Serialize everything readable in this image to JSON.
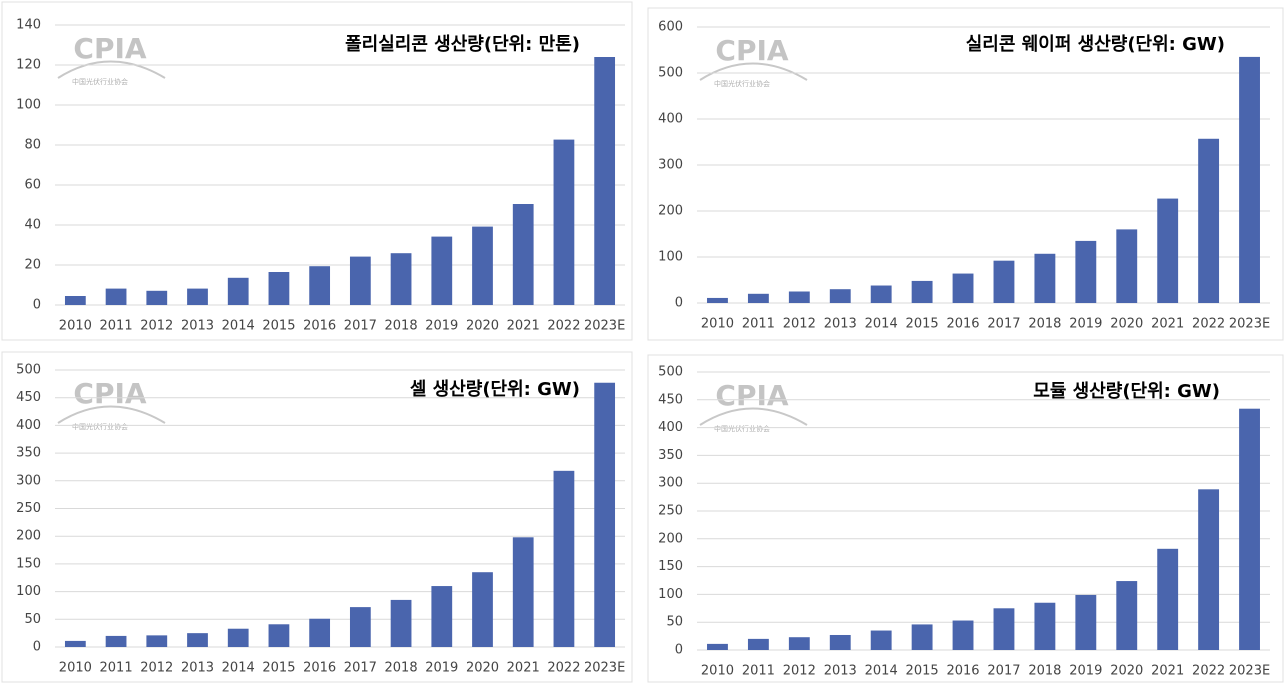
{
  "chart_data": [
    {
      "type": "bar",
      "title": "폴리실리콘 생산량(단위: 만톤)",
      "watermark": {
        "logo": "CPIA",
        "name": "中国光伏行业协会"
      },
      "categories": [
        "2010",
        "2011",
        "2012",
        "2013",
        "2014",
        "2015",
        "2016",
        "2017",
        "2018",
        "2019",
        "2020",
        "2021",
        "2022",
        "2023E"
      ],
      "values": [
        4.5,
        8.2,
        7.1,
        8.2,
        13.6,
        16.5,
        19.4,
        24.2,
        25.9,
        34.2,
        39.2,
        50.5,
        82.7,
        124
      ],
      "color": "#4a65ad",
      "ylim": [
        0,
        140
      ],
      "yticks": [
        0,
        20,
        40,
        60,
        80,
        100,
        120,
        140
      ],
      "grid": true
    },
    {
      "type": "bar",
      "title": "실리콘 웨이퍼 생산량(단위: GW)",
      "watermark": {
        "logo": "CPIA",
        "name": "中国光伏行业协会"
      },
      "categories": [
        "2010",
        "2011",
        "2012",
        "2013",
        "2014",
        "2015",
        "2016",
        "2017",
        "2018",
        "2019",
        "2020",
        "2021",
        "2022",
        "2023E"
      ],
      "values": [
        11,
        20,
        25,
        30,
        38,
        48,
        64,
        92,
        107,
        135,
        160,
        227,
        357,
        535
      ],
      "color": "#4a65ad",
      "ylim": [
        0,
        600
      ],
      "yticks": [
        0,
        100,
        200,
        300,
        400,
        500,
        600
      ],
      "grid": true
    },
    {
      "type": "bar",
      "title": "셀 생산량(단위: GW)",
      "watermark": {
        "logo": "CPIA",
        "name": "中国光伏行业协会"
      },
      "categories": [
        "2010",
        "2011",
        "2012",
        "2013",
        "2014",
        "2015",
        "2016",
        "2017",
        "2018",
        "2019",
        "2020",
        "2021",
        "2022",
        "2023E"
      ],
      "values": [
        11,
        20,
        21,
        25,
        33,
        41,
        51,
        72,
        85,
        110,
        135,
        198,
        318,
        477
      ],
      "color": "#4a65ad",
      "ylim": [
        0,
        500
      ],
      "yticks": [
        0,
        50,
        100,
        150,
        200,
        250,
        300,
        350,
        400,
        450,
        500
      ],
      "grid": true
    },
    {
      "type": "bar",
      "title": "모듈 생산량(단위: GW)",
      "watermark": {
        "logo": "CPIA",
        "name": "中国光伏行业协会"
      },
      "categories": [
        "2010",
        "2011",
        "2012",
        "2013",
        "2014",
        "2015",
        "2016",
        "2017",
        "2018",
        "2019",
        "2020",
        "2021",
        "2022",
        "2023E"
      ],
      "values": [
        11,
        20,
        23,
        27,
        35,
        46,
        53,
        75,
        85,
        99,
        124,
        182,
        289,
        434
      ],
      "color": "#4a65ad",
      "ylim": [
        0,
        500
      ],
      "yticks": [
        0,
        50,
        100,
        150,
        200,
        250,
        300,
        350,
        400,
        450,
        500
      ],
      "grid": true
    }
  ]
}
